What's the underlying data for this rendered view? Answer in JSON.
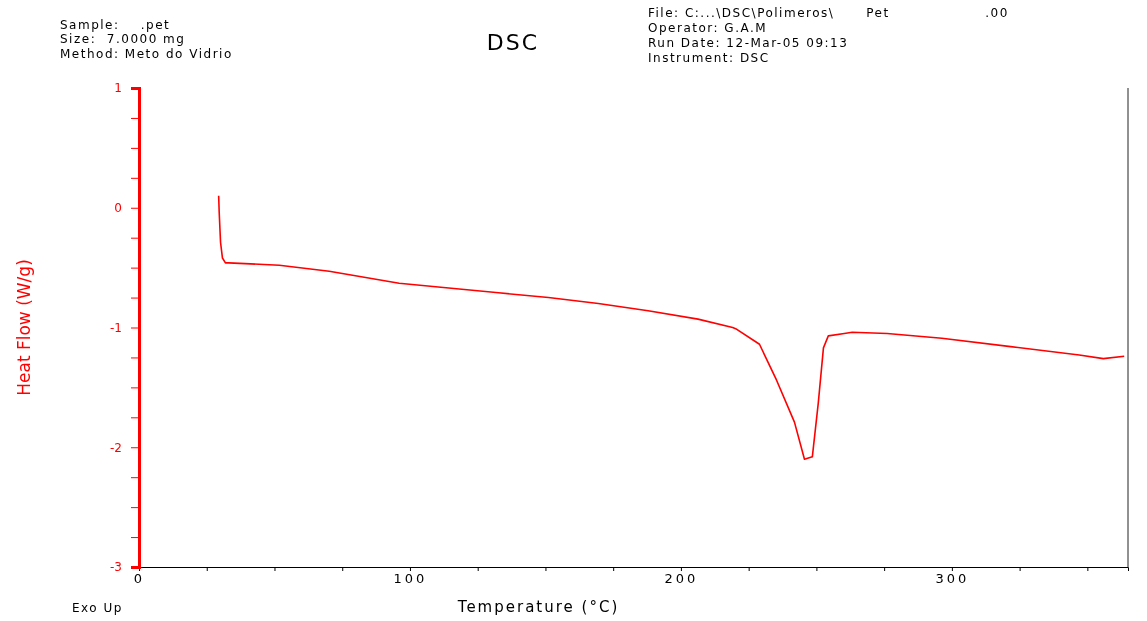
{
  "chart_data": {
    "type": "line",
    "title": "DSC",
    "xlabel": "Temperature (°C)",
    "ylabel": "Heat Flow (W/g)",
    "annotations": [
      "Sample:    .pet",
      "Size:  7.0000 mg",
      "Method: Meto do Vidrio",
      "File: C:...\\DSC\\Polimeros\\      Pet                  .00",
      "Operator: G.A.M",
      "Run Date: 12-Mar-05 09:13",
      "Instrument: DSC",
      "Exo Up"
    ],
    "xlim": [
      0,
      365
    ],
    "ylim": [
      -3,
      1
    ],
    "xticks": [
      0,
      {
        "value": 25,
        "label": null
      },
      {
        "value": 50,
        "label": null
      },
      {
        "value": 75,
        "label": null
      },
      100,
      {
        "value": 125,
        "label": null
      },
      {
        "value": 150,
        "label": null
      },
      {
        "value": 175,
        "label": null
      },
      200,
      {
        "value": 225,
        "label": null
      },
      {
        "value": 250,
        "label": null
      },
      {
        "value": 275,
        "label": null
      },
      300,
      {
        "value": 325,
        "label": null
      },
      {
        "value": 350,
        "label": null
      }
    ],
    "yticks": [
      -3,
      {
        "value": -2.75,
        "label": null
      },
      {
        "value": -2.5,
        "label": null
      },
      {
        "value": -2.25,
        "label": null
      },
      -2,
      {
        "value": -1.75,
        "label": null
      },
      {
        "value": -1.5,
        "label": null
      },
      {
        "value": -1.25,
        "label": null
      },
      -1,
      {
        "value": -0.75,
        "label": null
      },
      {
        "value": -0.5,
        "label": null
      },
      {
        "value": -0.25,
        "label": null
      },
      0,
      {
        "value": 0.25,
        "label": null
      },
      {
        "value": 0.5,
        "label": null
      },
      {
        "value": 0.75,
        "label": null
      },
      1
    ],
    "grid": false,
    "marker": "none",
    "line_style": "solid",
    "series": [
      {
        "color": "#ff0000",
        "x": [
          29.4,
          29.6,
          30.1,
          30.8,
          31.9,
          33.1,
          51.8,
          70.2,
          96,
          114.3,
          132.7,
          151.1,
          169.5,
          187.9,
          206.3,
          219.1,
          220.2,
          229,
          235.3,
          241.9,
          245.6,
          248.5,
          250.7,
          252.6,
          254.4,
          260.3,
          263.2,
          276.1,
          296.3,
          321.7,
          347,
          355.9,
          363.6
        ],
        "values": [
          0.1,
          -0.04,
          -0.29,
          -0.42,
          -0.46,
          -0.46,
          -0.48,
          -0.53,
          -0.63,
          -0.67,
          -0.71,
          -0.75,
          -0.8,
          -0.86,
          -0.93,
          -1.0,
          -1.01,
          -1.14,
          -1.44,
          -1.79,
          -2.1,
          -2.08,
          -1.63,
          -1.17,
          -1.07,
          -1.05,
          -1.04,
          -1.05,
          -1.09,
          -1.16,
          -1.23,
          -1.26,
          -1.24
        ]
      }
    ]
  }
}
